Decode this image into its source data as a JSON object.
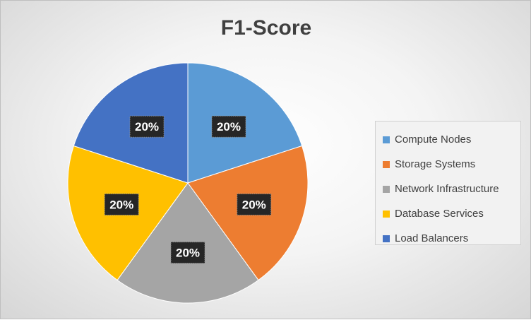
{
  "chart_data": {
    "type": "pie",
    "title": "F1-Score",
    "categories": [
      "Compute Nodes",
      "Storage Systems",
      "Network Infrastructure",
      "Database Services",
      "Load Balancers"
    ],
    "values": [
      20,
      20,
      20,
      20,
      20
    ],
    "data_labels": [
      "20%",
      "20%",
      "20%",
      "20%",
      "20%"
    ],
    "colors": [
      "#5B9BD5",
      "#ED7D31",
      "#A5A5A5",
      "#FFC000",
      "#4472C4"
    ],
    "legend_position": "right"
  }
}
